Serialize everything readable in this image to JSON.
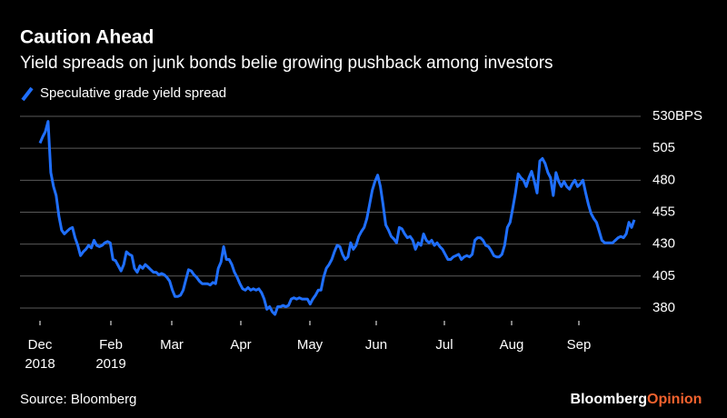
{
  "chart_data": {
    "type": "line",
    "title": "Caution Ahead",
    "subtitle": "Yield spreads on junk bonds belie growing pushback among investors",
    "source": "Source: Bloomberg",
    "brand": {
      "name": "Bloomberg",
      "section": "Opinion"
    },
    "x_labels": [
      {
        "month": "Dec",
        "year": "2018"
      },
      {
        "month": "Feb",
        "year": "2019"
      },
      {
        "month": "Mar"
      },
      {
        "month": "Apr"
      },
      {
        "month": "May"
      },
      {
        "month": "Jun"
      },
      {
        "month": "Jul"
      },
      {
        "month": "Aug"
      },
      {
        "month": "Sep"
      }
    ],
    "ylim": [
      370,
      530
    ],
    "yticks": [
      {
        "value": 530,
        "label": "530BPS"
      },
      505,
      480,
      455,
      430,
      405,
      380
    ],
    "grid": true,
    "series": [
      {
        "name": "Speculative grade yield spread",
        "color": "#1f6fff",
        "values": [
          509,
          514,
          518,
          526,
          486,
          475,
          468,
          452,
          441,
          438,
          440,
          442,
          443,
          435,
          429,
          421,
          424,
          426,
          429,
          427,
          433,
          429,
          428,
          429,
          431,
          432,
          431,
          418,
          417,
          413,
          409,
          414,
          424,
          422,
          421,
          411,
          408,
          413,
          411,
          414,
          412,
          410,
          408,
          408,
          406,
          407,
          406,
          404,
          401,
          394,
          389,
          389,
          390,
          394,
          402,
          410,
          409,
          406,
          404,
          401,
          399,
          399,
          399,
          398,
          400,
          399,
          411,
          416,
          428,
          418,
          418,
          414,
          408,
          404,
          399,
          395,
          394,
          396,
          394,
          395,
          394,
          395,
          392,
          387,
          379,
          381,
          377,
          375,
          381,
          381,
          382,
          381,
          382,
          387,
          388,
          387,
          388,
          387,
          387,
          387,
          383,
          387,
          390,
          394,
          394,
          404,
          411,
          414,
          418,
          424,
          429,
          428,
          422,
          418,
          420,
          431,
          426,
          429,
          436,
          440,
          443,
          450,
          461,
          472,
          479,
          484,
          475,
          461,
          445,
          441,
          436,
          434,
          431,
          443,
          442,
          438,
          435,
          436,
          433,
          426,
          431,
          429,
          438,
          433,
          431,
          433,
          429,
          431,
          428,
          426,
          422,
          418,
          418,
          420,
          421,
          422,
          418,
          420,
          421,
          420,
          422,
          433,
          435,
          435,
          433,
          429,
          428,
          425,
          421,
          420,
          420,
          422,
          429,
          443,
          447,
          458,
          470,
          485,
          482,
          480,
          475,
          482,
          487,
          479,
          470,
          495,
          497,
          493,
          486,
          482,
          468,
          486,
          479,
          475,
          479,
          475,
          473,
          477,
          480,
          475,
          477,
          480,
          470,
          461,
          454,
          450,
          447,
          440,
          433,
          431,
          431,
          431,
          431,
          433,
          435,
          436,
          435,
          438,
          447,
          443,
          449
        ]
      }
    ]
  }
}
